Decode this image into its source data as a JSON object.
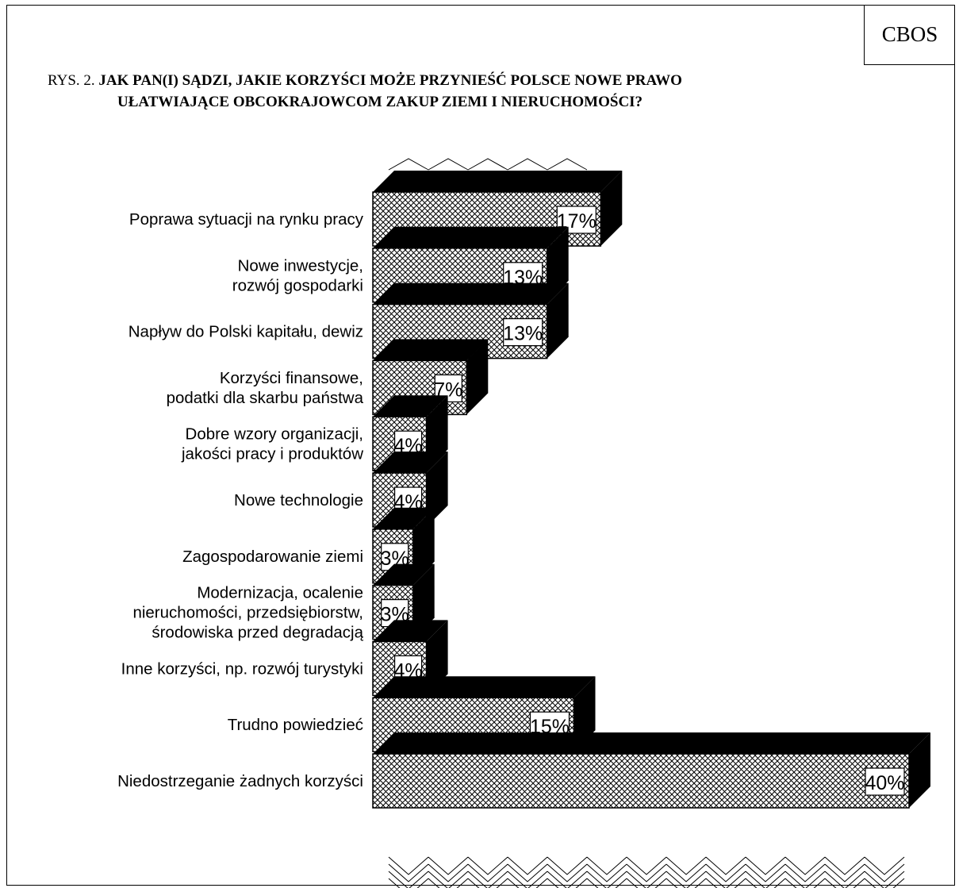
{
  "badge": "CBOS",
  "title": {
    "prefix": "RYS. 2.",
    "line1": "JAK PAN(I) SĄDZI, JAKIE KORZYŚCI MOŻE PRZYNIEŚĆ POLSCE NOWE PRAWO",
    "line2": "UŁATWIAJĄCE OBCOKRAJOWCOM ZAKUP ZIEMI I NIERUCHOMOŚCI?"
  },
  "chart_data": {
    "type": "bar",
    "orientation": "horizontal",
    "style": "3d-crosshatch",
    "xlim": [
      0,
      40
    ],
    "grid": false,
    "legend": "none",
    "categories": [
      [
        "Poprawa sytuacji na rynku pracy"
      ],
      [
        "Nowe inwestycje,",
        "rozwój gospodarki"
      ],
      [
        "Napływ do Polski kapitału, dewiz"
      ],
      [
        "Korzyści finansowe,",
        "podatki dla skarbu państwa"
      ],
      [
        "Dobre wzory organizacji,",
        "jakości pracy i produktów"
      ],
      [
        "Nowe technologie"
      ],
      [
        "Zagospodarowanie ziemi"
      ],
      [
        "Modernizacja, ocalenie",
        "nieruchomości, przedsiębiorstw,",
        "środowiska przed degradacją"
      ],
      [
        "Inne korzyści, np. rozwój turystyki"
      ],
      [
        "Trudno powiedzieć"
      ],
      [
        "Niedostrzeganie żadnych korzyści"
      ]
    ],
    "values": [
      17,
      13,
      13,
      7,
      4,
      4,
      3,
      3,
      4,
      15,
      40
    ],
    "value_labels": [
      "17%",
      "13%",
      "13%",
      "7%",
      "4%",
      "4%",
      "3%",
      "3%",
      "4%",
      "15%",
      "40%"
    ]
  }
}
